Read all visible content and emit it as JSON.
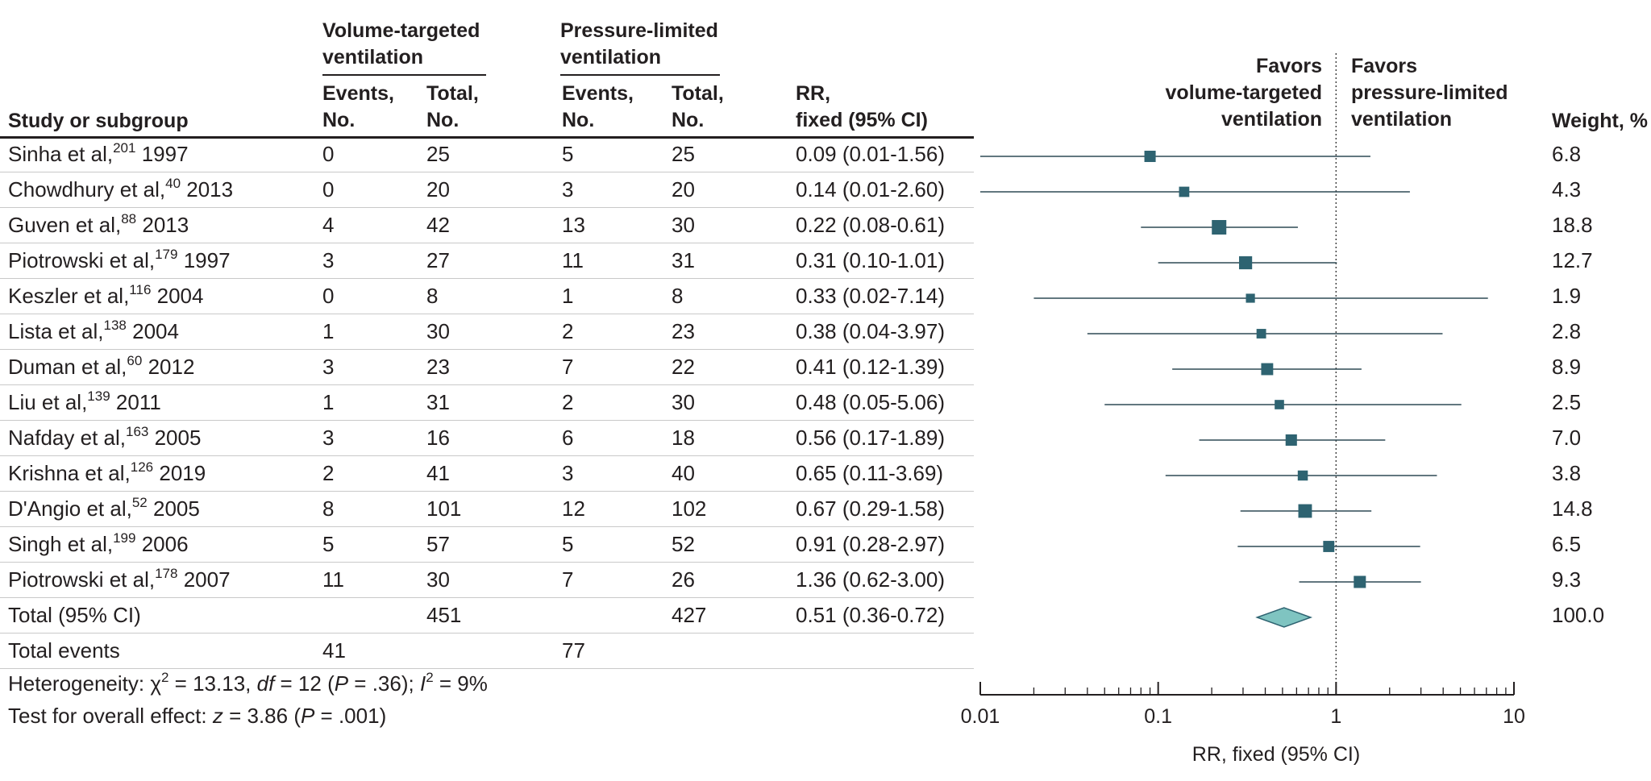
{
  "headers": {
    "study": "Study or subgroup",
    "group1": [
      "Volume-targeted",
      "ventilation"
    ],
    "group2": [
      "Pressure-limited",
      "ventilation"
    ],
    "events": [
      "Events,",
      "No."
    ],
    "total": [
      "Total,",
      "No."
    ],
    "rr": [
      "RR,",
      "fixed (95% CI)"
    ],
    "favors_left": [
      "Favors",
      "volume-targeted",
      "ventilation"
    ],
    "favors_right": [
      "Favors",
      "pressure-limited",
      "ventilation"
    ],
    "weight": "Weight, %"
  },
  "rows": [
    {
      "name": "Sinha et al,",
      "ref": "201",
      "year": "1997",
      "e1": "0",
      "n1": "25",
      "e2": "5",
      "n2": "25",
      "rr": "0.09 (0.01-1.56)",
      "weight": "6.8"
    },
    {
      "name": "Chowdhury et al,",
      "ref": "40",
      "year": "2013",
      "e1": "0",
      "n1": "20",
      "e2": "3",
      "n2": "20",
      "rr": "0.14 (0.01-2.60)",
      "weight": "4.3"
    },
    {
      "name": "Guven et al,",
      "ref": "88",
      "year": "2013",
      "e1": "4",
      "n1": "42",
      "e2": "13",
      "n2": "30",
      "rr": "0.22 (0.08-0.61)",
      "weight": "18.8"
    },
    {
      "name": "Piotrowski et al,",
      "ref": "179",
      "year": "1997",
      "e1": "3",
      "n1": "27",
      "e2": "11",
      "n2": "31",
      "rr": "0.31 (0.10-1.01)",
      "weight": "12.7"
    },
    {
      "name": "Keszler et al,",
      "ref": "116",
      "year": "2004",
      "e1": "0",
      "n1": "8",
      "e2": "1",
      "n2": "8",
      "rr": "0.33 (0.02-7.14)",
      "weight": "1.9"
    },
    {
      "name": "Lista et al,",
      "ref": "138",
      "year": "2004",
      "e1": "1",
      "n1": "30",
      "e2": "2",
      "n2": "23",
      "rr": "0.38 (0.04-3.97)",
      "weight": "2.8"
    },
    {
      "name": "Duman et al,",
      "ref": "60",
      "year": "2012",
      "e1": "3",
      "n1": "23",
      "e2": "7",
      "n2": "22",
      "rr": "0.41 (0.12-1.39)",
      "weight": "8.9"
    },
    {
      "name": "Liu et al,",
      "ref": "139",
      "year": "2011",
      "e1": "1",
      "n1": "31",
      "e2": "2",
      "n2": "30",
      "rr": "0.48 (0.05-5.06)",
      "weight": "2.5"
    },
    {
      "name": "Nafday et al,",
      "ref": "163",
      "year": "2005",
      "e1": "3",
      "n1": "16",
      "e2": "6",
      "n2": "18",
      "rr": "0.56 (0.17-1.89)",
      "weight": "7.0"
    },
    {
      "name": "Krishna et al,",
      "ref": "126",
      "year": "2019",
      "e1": "2",
      "n1": "41",
      "e2": "3",
      "n2": "40",
      "rr": "0.65 (0.11-3.69)",
      "weight": "3.8"
    },
    {
      "name": "D'Angio et al,",
      "ref": "52",
      "year": "2005",
      "e1": "8",
      "n1": "101",
      "e2": "12",
      "n2": "102",
      "rr": "0.67 (0.29-1.58)",
      "weight": "14.8"
    },
    {
      "name": "Singh et al,",
      "ref": "199",
      "year": "2006",
      "e1": "5",
      "n1": "57",
      "e2": "5",
      "n2": "52",
      "rr": "0.91 (0.28-2.97)",
      "weight": "6.5"
    },
    {
      "name": "Piotrowski et al,",
      "ref": "178",
      "year": "2007",
      "e1": "11",
      "n1": "30",
      "e2": "7",
      "n2": "26",
      "rr": "1.36 (0.62-3.00)",
      "weight": "9.3"
    }
  ],
  "total_row": {
    "label": "Total (95% CI)",
    "n1": "451",
    "n2": "427",
    "rr": "0.51 (0.36-0.72)",
    "weight": "100.0"
  },
  "events_row": {
    "label": "Total events",
    "e1": "41",
    "e2": "77"
  },
  "heterogeneity": {
    "prefix": "Heterogeneity: χ",
    "chi_sup": "2",
    "chi_val": " = 13.13, ",
    "df_label": "df",
    "df_val": " = 12 (",
    "p_label": "P",
    "p_val": " = .36); ",
    "i_label": "I",
    "i_sup": "2",
    "i_val": " = 9%"
  },
  "overall": {
    "prefix": "Test for overall effect: ",
    "z_label": "z",
    "z_val": " = 3.86 (",
    "p_label": "P",
    "p_val": " = .001)"
  },
  "chart_data": {
    "type": "forest",
    "x_scale": "log",
    "xlim": [
      0.01,
      10
    ],
    "xticks": [
      0.01,
      0.1,
      1,
      10
    ],
    "xtick_labels": [
      "0.01",
      "0.1",
      "1",
      "10"
    ],
    "xlabel": "RR, fixed (95% CI)",
    "reference_line": 1,
    "studies": [
      {
        "rr": 0.09,
        "lo": 0.01,
        "hi": 1.56,
        "weight": 6.8
      },
      {
        "rr": 0.14,
        "lo": 0.01,
        "hi": 2.6,
        "weight": 4.3
      },
      {
        "rr": 0.22,
        "lo": 0.08,
        "hi": 0.61,
        "weight": 18.8
      },
      {
        "rr": 0.31,
        "lo": 0.1,
        "hi": 1.01,
        "weight": 12.7
      },
      {
        "rr": 0.33,
        "lo": 0.02,
        "hi": 7.14,
        "weight": 1.9
      },
      {
        "rr": 0.38,
        "lo": 0.04,
        "hi": 3.97,
        "weight": 2.8
      },
      {
        "rr": 0.41,
        "lo": 0.12,
        "hi": 1.39,
        "weight": 8.9
      },
      {
        "rr": 0.48,
        "lo": 0.05,
        "hi": 5.06,
        "weight": 2.5
      },
      {
        "rr": 0.56,
        "lo": 0.17,
        "hi": 1.89,
        "weight": 7.0
      },
      {
        "rr": 0.65,
        "lo": 0.11,
        "hi": 3.69,
        "weight": 3.8
      },
      {
        "rr": 0.67,
        "lo": 0.29,
        "hi": 1.58,
        "weight": 14.8
      },
      {
        "rr": 0.91,
        "lo": 0.28,
        "hi": 2.97,
        "weight": 6.5
      },
      {
        "rr": 1.36,
        "lo": 0.62,
        "hi": 3.0,
        "weight": 9.3
      }
    ],
    "pooled": {
      "rr": 0.51,
      "lo": 0.36,
      "hi": 0.72
    },
    "colors": {
      "square": "#2e6371",
      "line": "#2e4a55",
      "diamond_fill": "#7fc4c1",
      "diamond_stroke": "#2e6371",
      "axis": "#231f20"
    }
  }
}
